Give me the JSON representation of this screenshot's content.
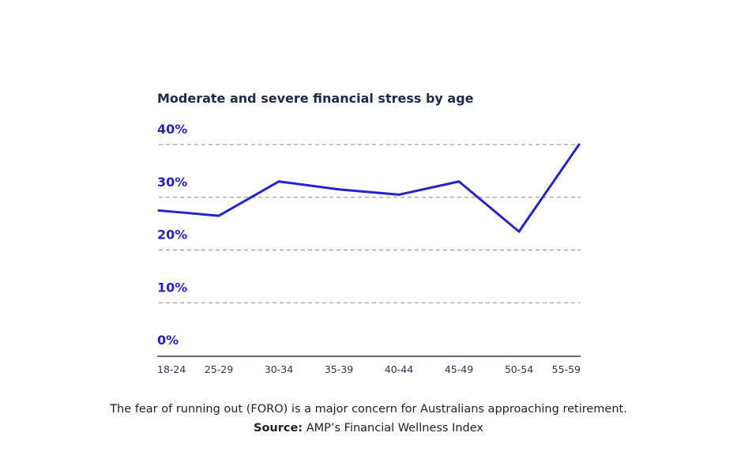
{
  "chart_data": {
    "type": "line",
    "title": "Moderate and severe financial stress by age",
    "categories": [
      "18-24",
      "25-29",
      "30-34",
      "35-39",
      "40-44",
      "45-49",
      "50-54",
      "55-59"
    ],
    "y_tick_labels": [
      "40%",
      "30%",
      "20%",
      "10%",
      "0%"
    ],
    "values": [
      27.5,
      26.5,
      33,
      31.5,
      30.5,
      33,
      23.5,
      40
    ],
    "ylim": [
      0,
      40
    ],
    "y_ticks": [
      0,
      10,
      20,
      30,
      40
    ],
    "grid": "dashed horizontal",
    "line_color": "#2323d2",
    "label_color": "#2424c8"
  },
  "caption": "The fear of running out (FORO) is a major concern for Australians approaching retirement.",
  "source_label": "Source:",
  "source_text": "AMP’s Financial Wellness Index"
}
